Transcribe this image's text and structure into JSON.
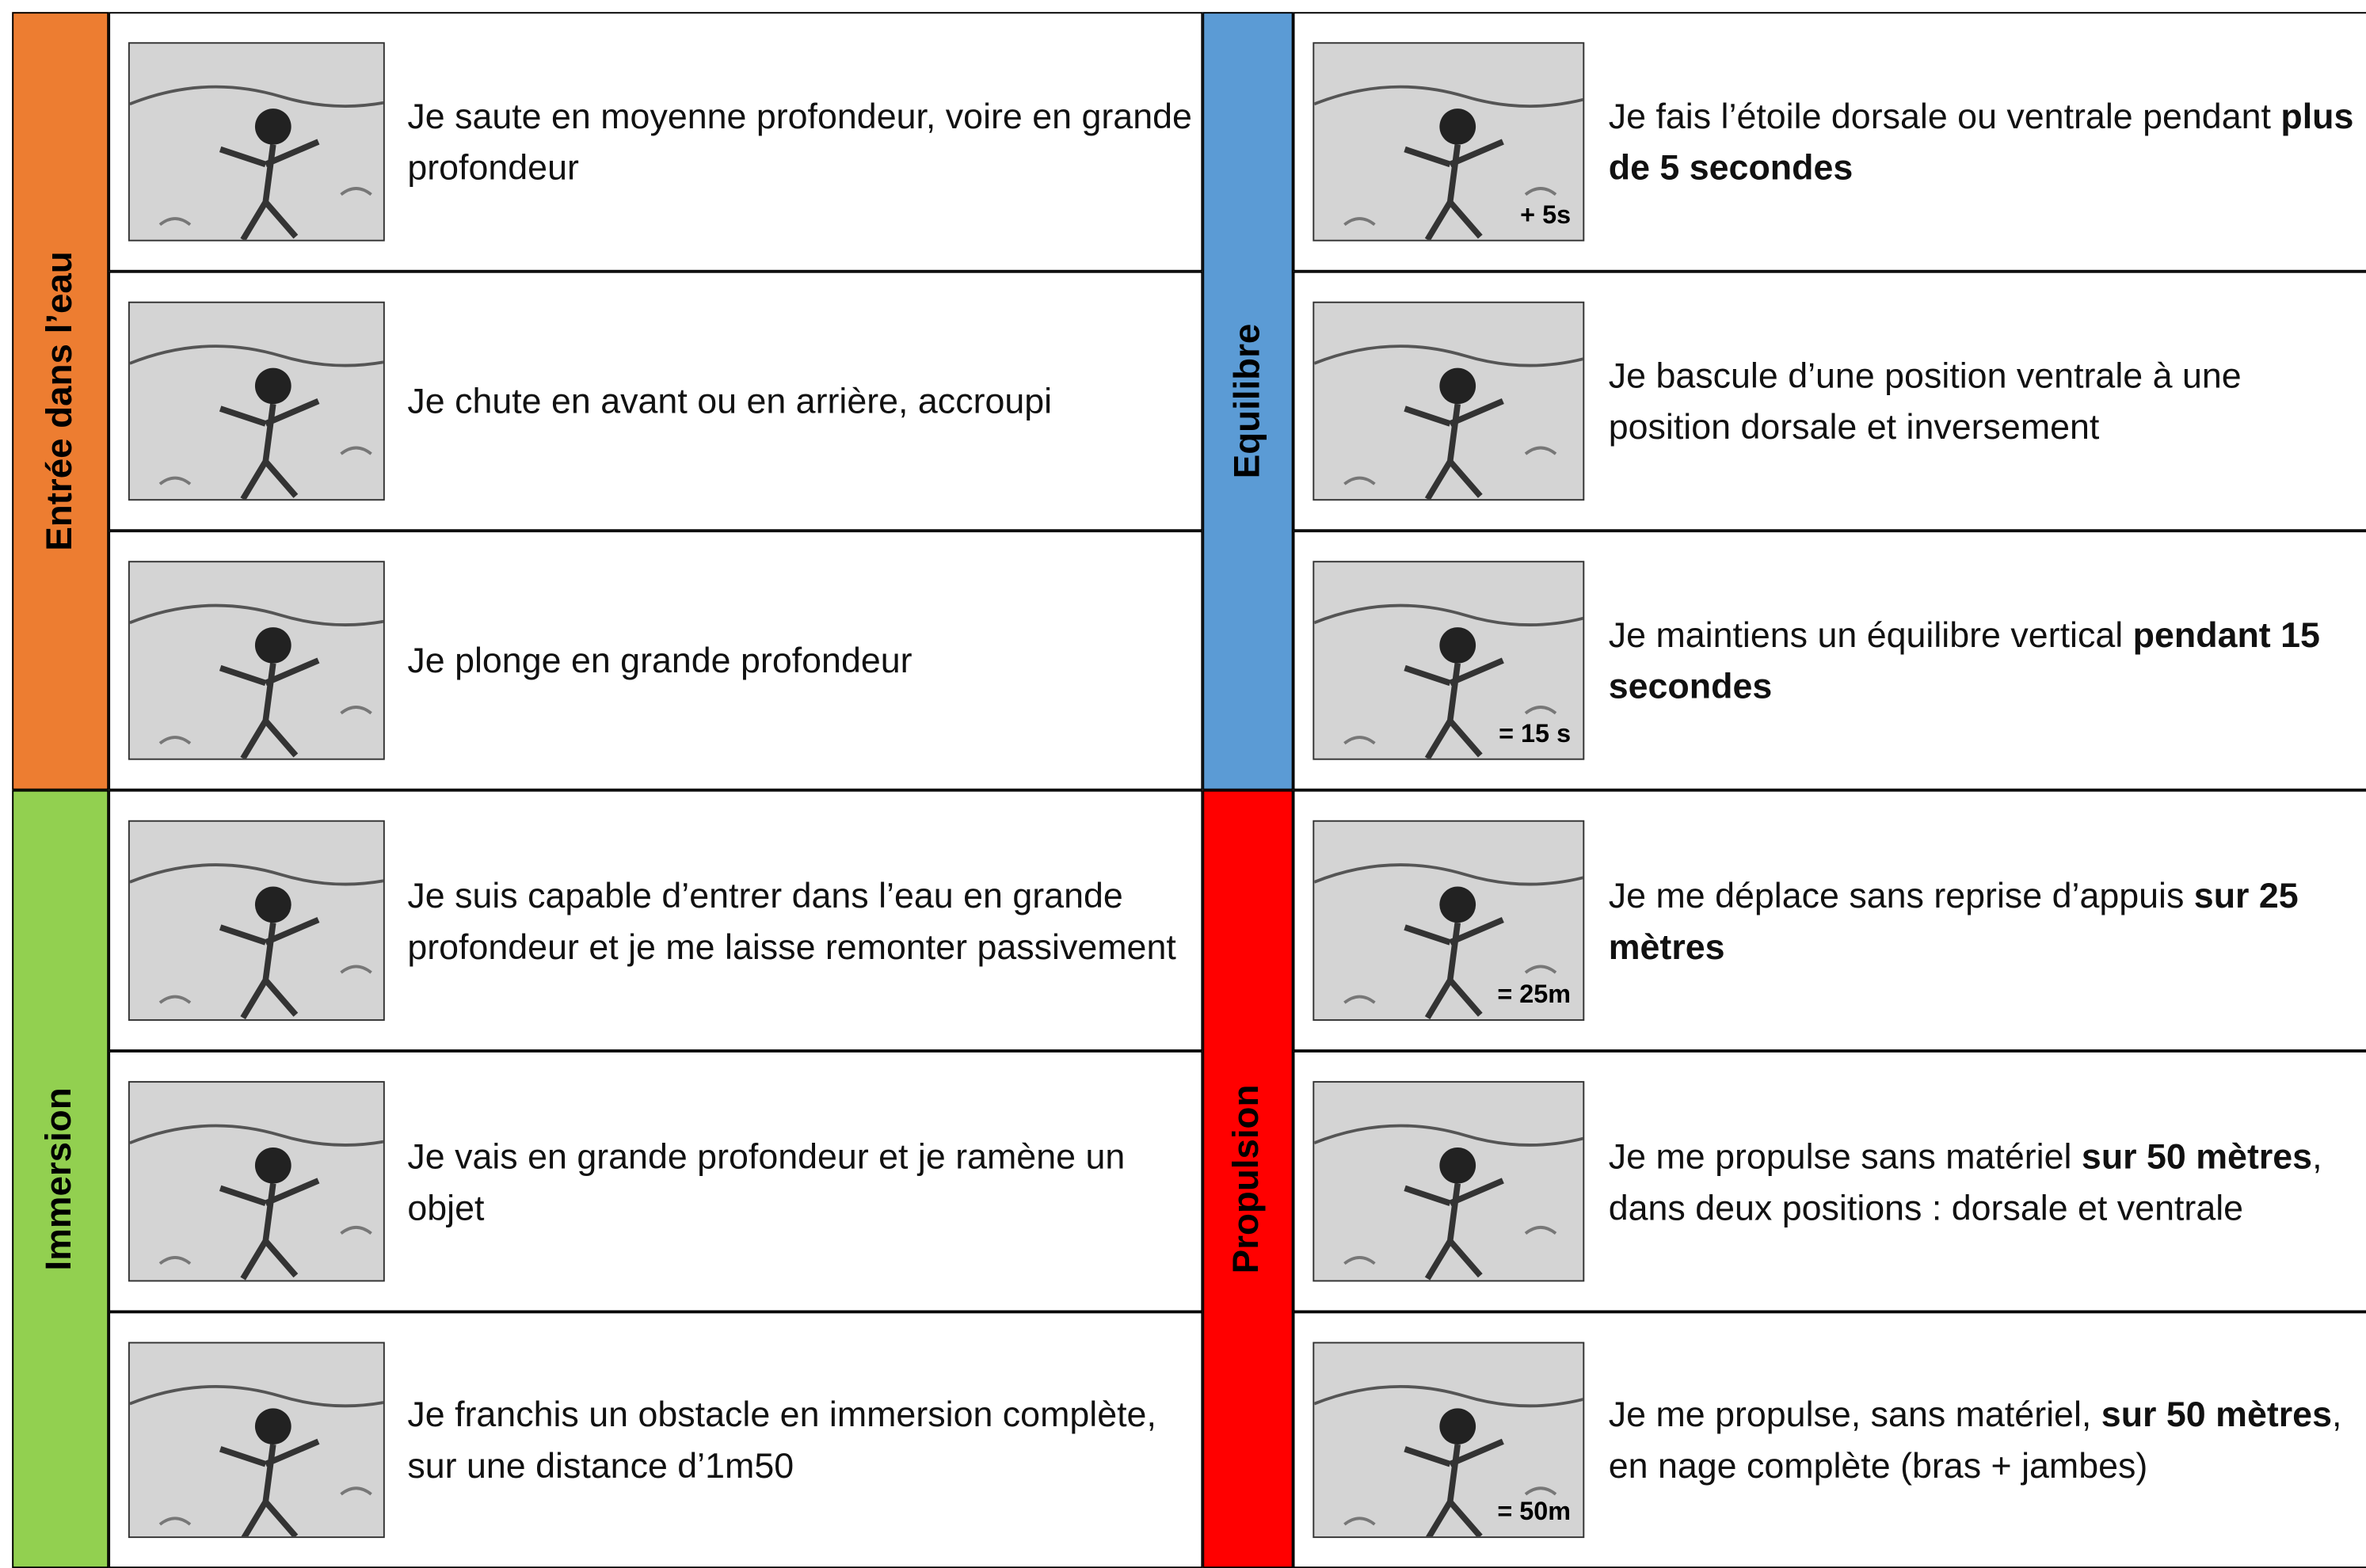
{
  "sections": [
    {
      "label": "Entrée dans l’eau",
      "color": "#ed7d31",
      "items": [
        {
          "runs": [
            {
              "t": "Je saute en moyenne profondeur, voire en grande profondeur",
              "b": false
            }
          ]
        },
        {
          "runs": [
            {
              "t": "Je chute en avant ou en arrière, accroupi",
              "b": false
            }
          ]
        },
        {
          "runs": [
            {
              "t": "Je plonge en grande profondeur",
              "b": false
            }
          ]
        }
      ]
    },
    {
      "label": "Immersion",
      "color": "#92d050",
      "items": [
        {
          "runs": [
            {
              "t": "Je suis capable d’entrer dans l’eau en grande profondeur et je me laisse remonter passivement",
              "b": false
            }
          ]
        },
        {
          "runs": [
            {
              "t": "Je vais en grande profondeur et je ramène un objet",
              "b": false
            }
          ]
        },
        {
          "runs": [
            {
              "t": "Je franchis un obstacle en immersion complète, sur une distance d’1m50",
              "b": false
            }
          ]
        }
      ]
    },
    {
      "label": "Equilibre",
      "color": "#5b9bd5",
      "items": [
        {
          "image_text": "+ 5s",
          "runs": [
            {
              "t": "Je fais l’étoile dorsale ou ventrale pendant ",
              "b": false
            },
            {
              "t": "plus de 5 secondes",
              "b": true
            }
          ]
        },
        {
          "runs": [
            {
              "t": "Je bascule d’une position ventrale à une position dorsale et inversement",
              "b": false
            }
          ]
        },
        {
          "image_text": "= 15 s",
          "runs": [
            {
              "t": "Je maintiens un équilibre vertical ",
              "b": false
            },
            {
              "t": "pendant 15 secondes",
              "b": true
            }
          ]
        }
      ]
    },
    {
      "label": "Propulsion",
      "color": "#ff0000",
      "items": [
        {
          "image_text": "= 25m",
          "runs": [
            {
              "t": "Je me déplace sans reprise d’appuis ",
              "b": false
            },
            {
              "t": "sur 25 mètres",
              "b": true
            }
          ]
        },
        {
          "runs": [
            {
              "t": "Je me propulse sans matériel ",
              "b": false
            },
            {
              "t": "sur 50 mètres",
              "b": true
            },
            {
              "t": ", dans deux positions : dorsale et ventrale",
              "b": false
            }
          ]
        },
        {
          "image_text": "= 50m",
          "runs": [
            {
              "t": "Je me propulse, sans matériel, ",
              "b": false
            },
            {
              "t": "sur 50 mètres",
              "b": true
            },
            {
              "t": ", en nage complète (bras + jambes)",
              "b": false
            }
          ]
        }
      ]
    }
  ]
}
